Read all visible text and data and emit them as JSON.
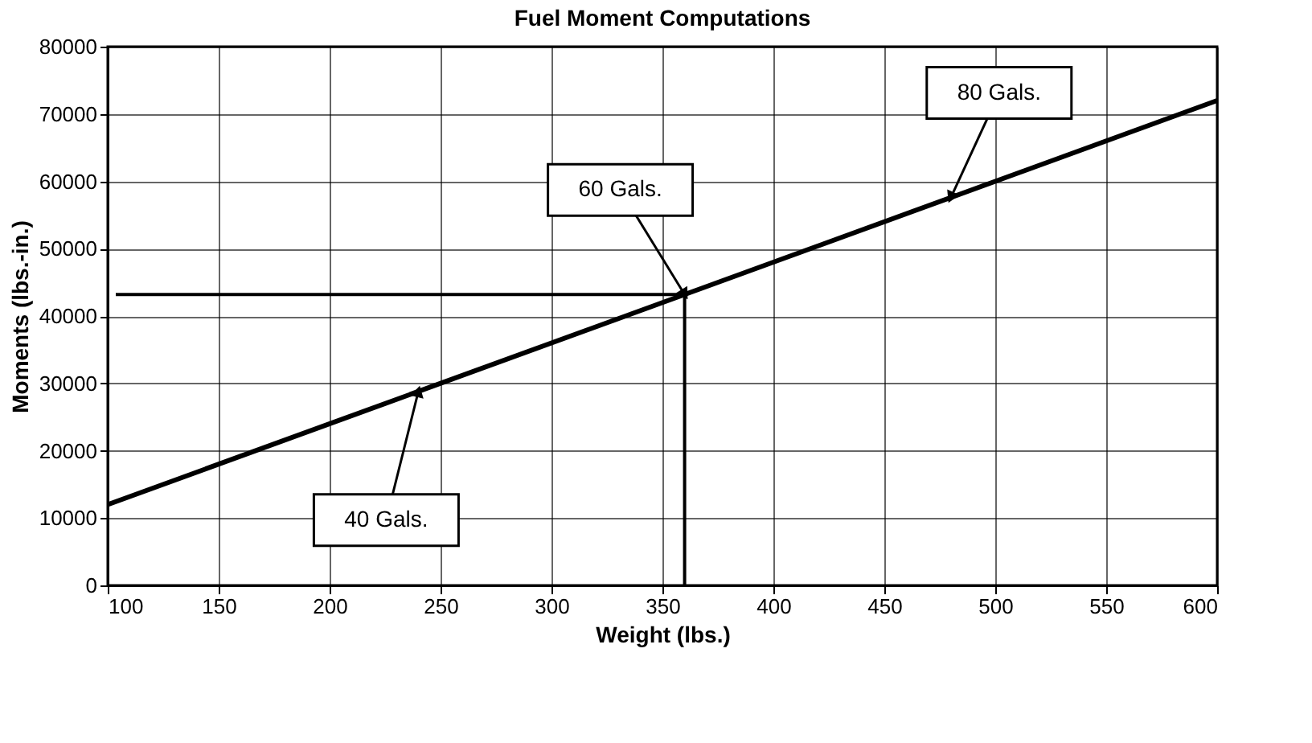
{
  "chart_data": {
    "type": "line",
    "title": "Fuel Moment Computations",
    "xlabel": "Weight (lbs.)",
    "ylabel": "Moments (lbs.-in.)",
    "x": [
      100,
      600
    ],
    "series": [
      {
        "color": "#000000",
        "values": [
          12000,
          72000
        ]
      }
    ],
    "xlim": [
      100,
      600
    ],
    "xticks": [
      100,
      150,
      200,
      250,
      300,
      350,
      400,
      450,
      500,
      550,
      600
    ],
    "ylim": [
      0,
      80000
    ],
    "yticks": [
      0,
      10000,
      20000,
      30000,
      40000,
      50000,
      60000,
      70000,
      80000
    ],
    "grid": true,
    "marker": "none",
    "line_style": "solid",
    "ref_lines": [
      {
        "axis": "x",
        "value": 360,
        "color": "#000000"
      },
      {
        "axis": "y",
        "value": 43200,
        "color": "#000000"
      }
    ],
    "annotations": [
      {
        "text": "40 Gals.",
        "x": 240,
        "y": 28800
      },
      {
        "text": "60 Gals.",
        "x": 360,
        "y": 43200
      },
      {
        "text": "80 Gals.",
        "x": 480,
        "y": 57600
      }
    ]
  }
}
